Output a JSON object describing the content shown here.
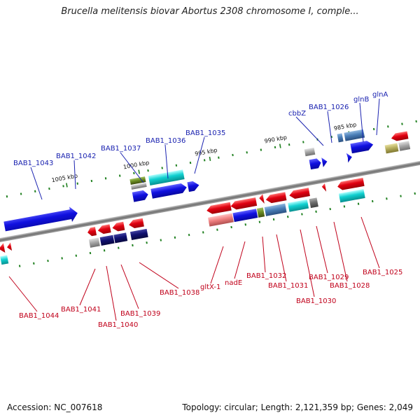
{
  "title": "Brucella melitensis biovar Abortus 2308 chromosome I, comple...",
  "footer": {
    "accession": "Accession: NC_007618",
    "topology": "Topology: circular; Length: 2,121,359 bp; Genes: 2,049"
  },
  "scale_labels": [
    "1005 kbp",
    "1000 kbp",
    "995 kbp",
    "990 kbp",
    "985 kbp"
  ],
  "top_labels": [
    "BAB1_1043",
    "BAB1_1042",
    "BAB1_1037",
    "BAB1_1036",
    "BAB1_1035",
    "cbbZ",
    "BAB1_1026",
    "glnB",
    "glnA"
  ],
  "bottom_labels": [
    "BAB1_1044",
    "BAB1_1041",
    "BAB1_1040",
    "BAB1_1039",
    "BAB1_1038",
    "gltX-1",
    "nadE",
    "BAB1_1032",
    "BAB1_1031",
    "BAB1_1030",
    "BAB1_1029",
    "BAB1_1028",
    "BAB1_1025"
  ],
  "colors": {
    "forward_cds": "#1010e0",
    "reverse_cds": "#e00010",
    "cyan": "#10d0d0",
    "steel": "#4a7fb8",
    "navy": "#101070",
    "gray": "#a0a0a0",
    "olive": "#6b8e23",
    "khaki": "#b8b060",
    "pink": "#f08080",
    "label_top": "#1a22b0",
    "label_bottom": "#c0001a"
  }
}
